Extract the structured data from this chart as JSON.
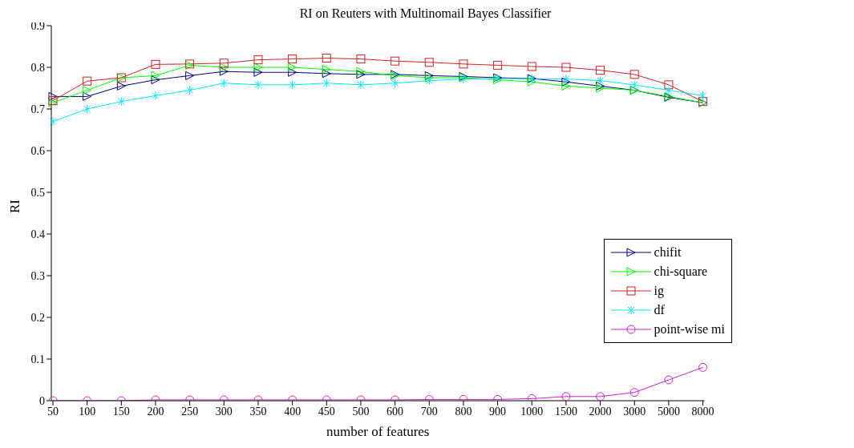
{
  "chart_data": {
    "type": "line",
    "title": "RI on Reuters with Multinomail Bayes Classifier",
    "xlabel": "number of features",
    "ylabel": "RI",
    "categories": [
      "50",
      "100",
      "150",
      "200",
      "250",
      "300",
      "350",
      "400",
      "450",
      "500",
      "600",
      "700",
      "800",
      "900",
      "1000",
      "1500",
      "2000",
      "3000",
      "5000",
      "8000"
    ],
    "ylim": [
      0,
      0.9
    ],
    "yticks": [
      0,
      0.1,
      0.2,
      0.3,
      0.4,
      0.5,
      0.6,
      0.7,
      0.8,
      0.9
    ],
    "grid": false,
    "legend": "right",
    "series": [
      {
        "name": "chifit",
        "color": "#000080",
        "marker": "triangle",
        "values": [
          0.73,
          0.73,
          0.755,
          0.77,
          0.78,
          0.79,
          0.788,
          0.788,
          0.785,
          0.783,
          0.783,
          0.78,
          0.778,
          0.775,
          0.773,
          0.765,
          0.755,
          0.745,
          0.728,
          0.715
        ]
      },
      {
        "name": "chi-square",
        "color": "#00ff00",
        "marker": "triangle",
        "values": [
          0.715,
          0.745,
          0.775,
          0.78,
          0.805,
          0.8,
          0.8,
          0.8,
          0.795,
          0.79,
          0.78,
          0.775,
          0.775,
          0.77,
          0.765,
          0.755,
          0.75,
          0.745,
          0.73,
          0.715
        ]
      },
      {
        "name": "ig",
        "color": "#cc2222",
        "marker": "square",
        "values": [
          0.72,
          0.767,
          0.775,
          0.807,
          0.808,
          0.81,
          0.818,
          0.82,
          0.822,
          0.82,
          0.815,
          0.812,
          0.808,
          0.805,
          0.802,
          0.8,
          0.793,
          0.783,
          0.758,
          0.718
        ]
      },
      {
        "name": "df",
        "color": "#00e5ee",
        "marker": "cross",
        "values": [
          0.67,
          0.7,
          0.718,
          0.732,
          0.745,
          0.762,
          0.758,
          0.758,
          0.762,
          0.758,
          0.762,
          0.768,
          0.772,
          0.773,
          0.773,
          0.772,
          0.768,
          0.758,
          0.745,
          0.732
        ]
      },
      {
        "name": "point-wise mi",
        "color": "#cc22cc",
        "marker": "circle",
        "values": [
          0,
          0,
          0,
          0.002,
          0.002,
          0.002,
          0.002,
          0.002,
          0.002,
          0.002,
          0.002,
          0.003,
          0.003,
          0.003,
          0.005,
          0.01,
          0.01,
          0.02,
          0.05,
          0.08
        ]
      }
    ]
  }
}
